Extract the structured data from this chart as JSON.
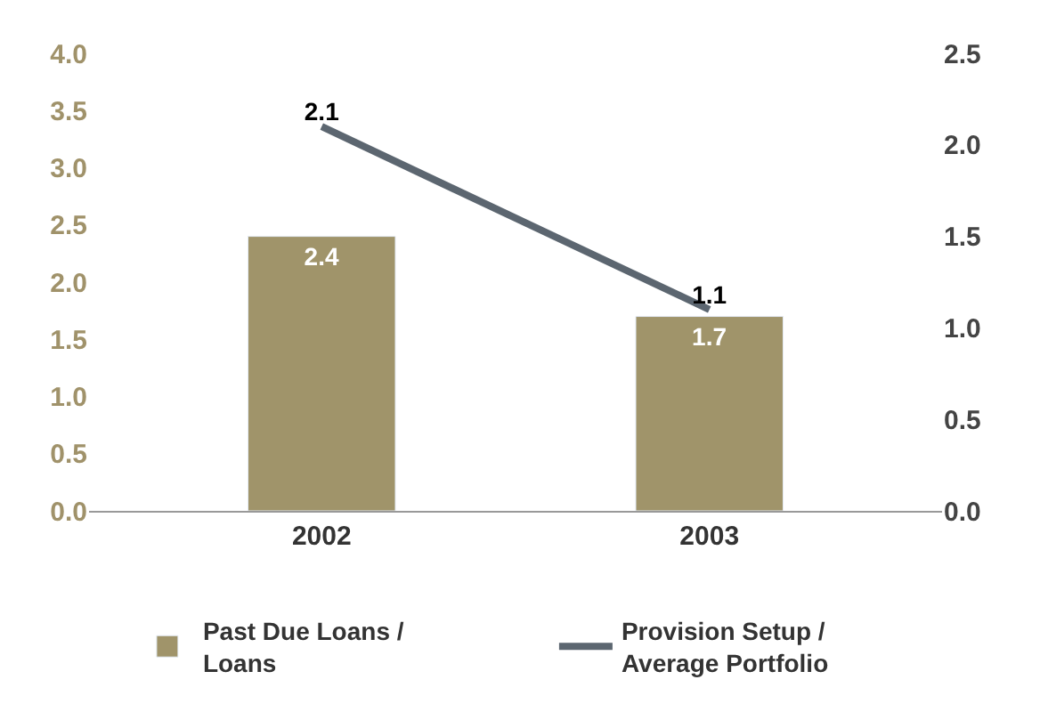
{
  "chart_data": {
    "type": "bar",
    "categories": [
      "2002",
      "2003"
    ],
    "series": [
      {
        "name": "Past Due Loans / Loans",
        "color": "#a0946a",
        "values": [
          2.4,
          1.7
        ]
      },
      {
        "name": "Provision Setup / Average Portfolio",
        "type": "line",
        "axis": "y2",
        "color": "#5c6670",
        "values": [
          2.1,
          1.1
        ]
      }
    ],
    "ylim": [
      0,
      4.0
    ],
    "yticks": [
      {
        "value": 0,
        "label": "0.0"
      },
      0.5,
      {
        "value": 1,
        "label": "1.0"
      },
      1.5,
      {
        "value": 2,
        "label": "2.0"
      },
      2.5,
      {
        "value": 3,
        "label": "3.0"
      },
      3.5,
      {
        "value": 4,
        "label": "4.0"
      }
    ],
    "y2lim": [
      0,
      2.5
    ],
    "y2ticks": [
      {
        "value": 0,
        "label": "0.0"
      },
      0.5,
      {
        "value": 1,
        "label": "1.0"
      },
      1.5,
      {
        "value": 2,
        "label": "2.0"
      },
      2.5
    ],
    "data_labels": true,
    "legend": "bottom",
    "marker": "none",
    "line_style": "solid"
  }
}
